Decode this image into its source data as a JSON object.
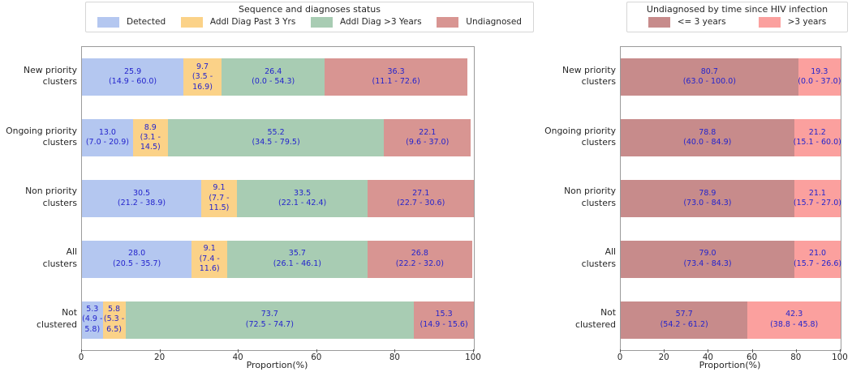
{
  "chart_data": [
    {
      "type": "bar",
      "orientation": "horizontal",
      "stacked": true,
      "title": "Sequence and diagnoses status",
      "legend_position": "top",
      "grid": false,
      "xlabel": "Proportion(%)",
      "xlim": [
        0,
        100
      ],
      "xticks": [
        0,
        20,
        40,
        60,
        80,
        100
      ],
      "categories": [
        "New priority\nclusters",
        "Ongoing priority\nclusters",
        "Non priority\nclusters",
        "All\nclusters",
        "Not\nclustered"
      ],
      "series": [
        {
          "name": "Detected",
          "color": "#b4c7f0",
          "values": [
            25.9,
            13.0,
            30.5,
            28.0,
            5.3
          ],
          "ci": [
            "14.9 - 60.0",
            "7.0 - 20.9",
            "21.2 - 38.9",
            "20.5 - 35.7",
            "4.9 - 5.8"
          ]
        },
        {
          "name": "Addl Diag Past 3 Yrs",
          "color": "#fbd288",
          "values": [
            9.7,
            8.9,
            9.1,
            9.1,
            5.8
          ],
          "ci": [
            "3.5 - 16.9",
            "3.1 - 14.5",
            "7.7 - 11.5",
            "7.4 - 11.6",
            "5.3 - 6.5"
          ]
        },
        {
          "name": "Addl Diag >3 Years",
          "color": "#a8ccb3",
          "values": [
            26.4,
            55.2,
            33.5,
            35.7,
            73.7
          ],
          "ci": [
            "0.0 - 54.3",
            "34.5 - 79.5",
            "22.1 - 42.4",
            "26.1 - 46.1",
            "72.5 - 74.7"
          ]
        },
        {
          "name": "Undiagnosed",
          "color": "#d89592",
          "values": [
            36.3,
            22.1,
            27.1,
            26.8,
            15.3
          ],
          "ci": [
            "11.1 - 72.6",
            "9.6 - 37.0",
            "22.7 - 30.6",
            "22.2 - 32.0",
            "14.9 - 15.6"
          ]
        }
      ],
      "value_label_color": "#2424cc"
    },
    {
      "type": "bar",
      "orientation": "horizontal",
      "stacked": true,
      "title": "Undiagnosed by time since HIV infection",
      "legend_position": "top",
      "grid": false,
      "xlabel": "Proportion(%)",
      "xlim": [
        0,
        100
      ],
      "xticks": [
        0,
        20,
        40,
        60,
        80,
        100
      ],
      "categories": [
        "New priority\nclusters",
        "Ongoing priority\nclusters",
        "Non priority\nclusters",
        "All\nclusters",
        "Not\nclustered"
      ],
      "series": [
        {
          "name": "<= 3 years",
          "color": "#c78b8b",
          "values": [
            80.7,
            78.8,
            78.9,
            79.0,
            57.7
          ],
          "ci": [
            "63.0 - 100.0",
            "40.0 - 84.9",
            "73.0 - 84.3",
            "73.4 - 84.3",
            "54.2 - 61.2"
          ]
        },
        {
          "name": ">3 years",
          "color": "#fba09e",
          "values": [
            19.3,
            21.2,
            21.1,
            21.0,
            42.3
          ],
          "ci": [
            "0.0 - 37.0",
            "15.1 - 60.0",
            "15.7 - 27.0",
            "15.7 - 26.6",
            "38.8 - 45.8"
          ]
        }
      ],
      "value_label_color": "#2424cc"
    }
  ]
}
